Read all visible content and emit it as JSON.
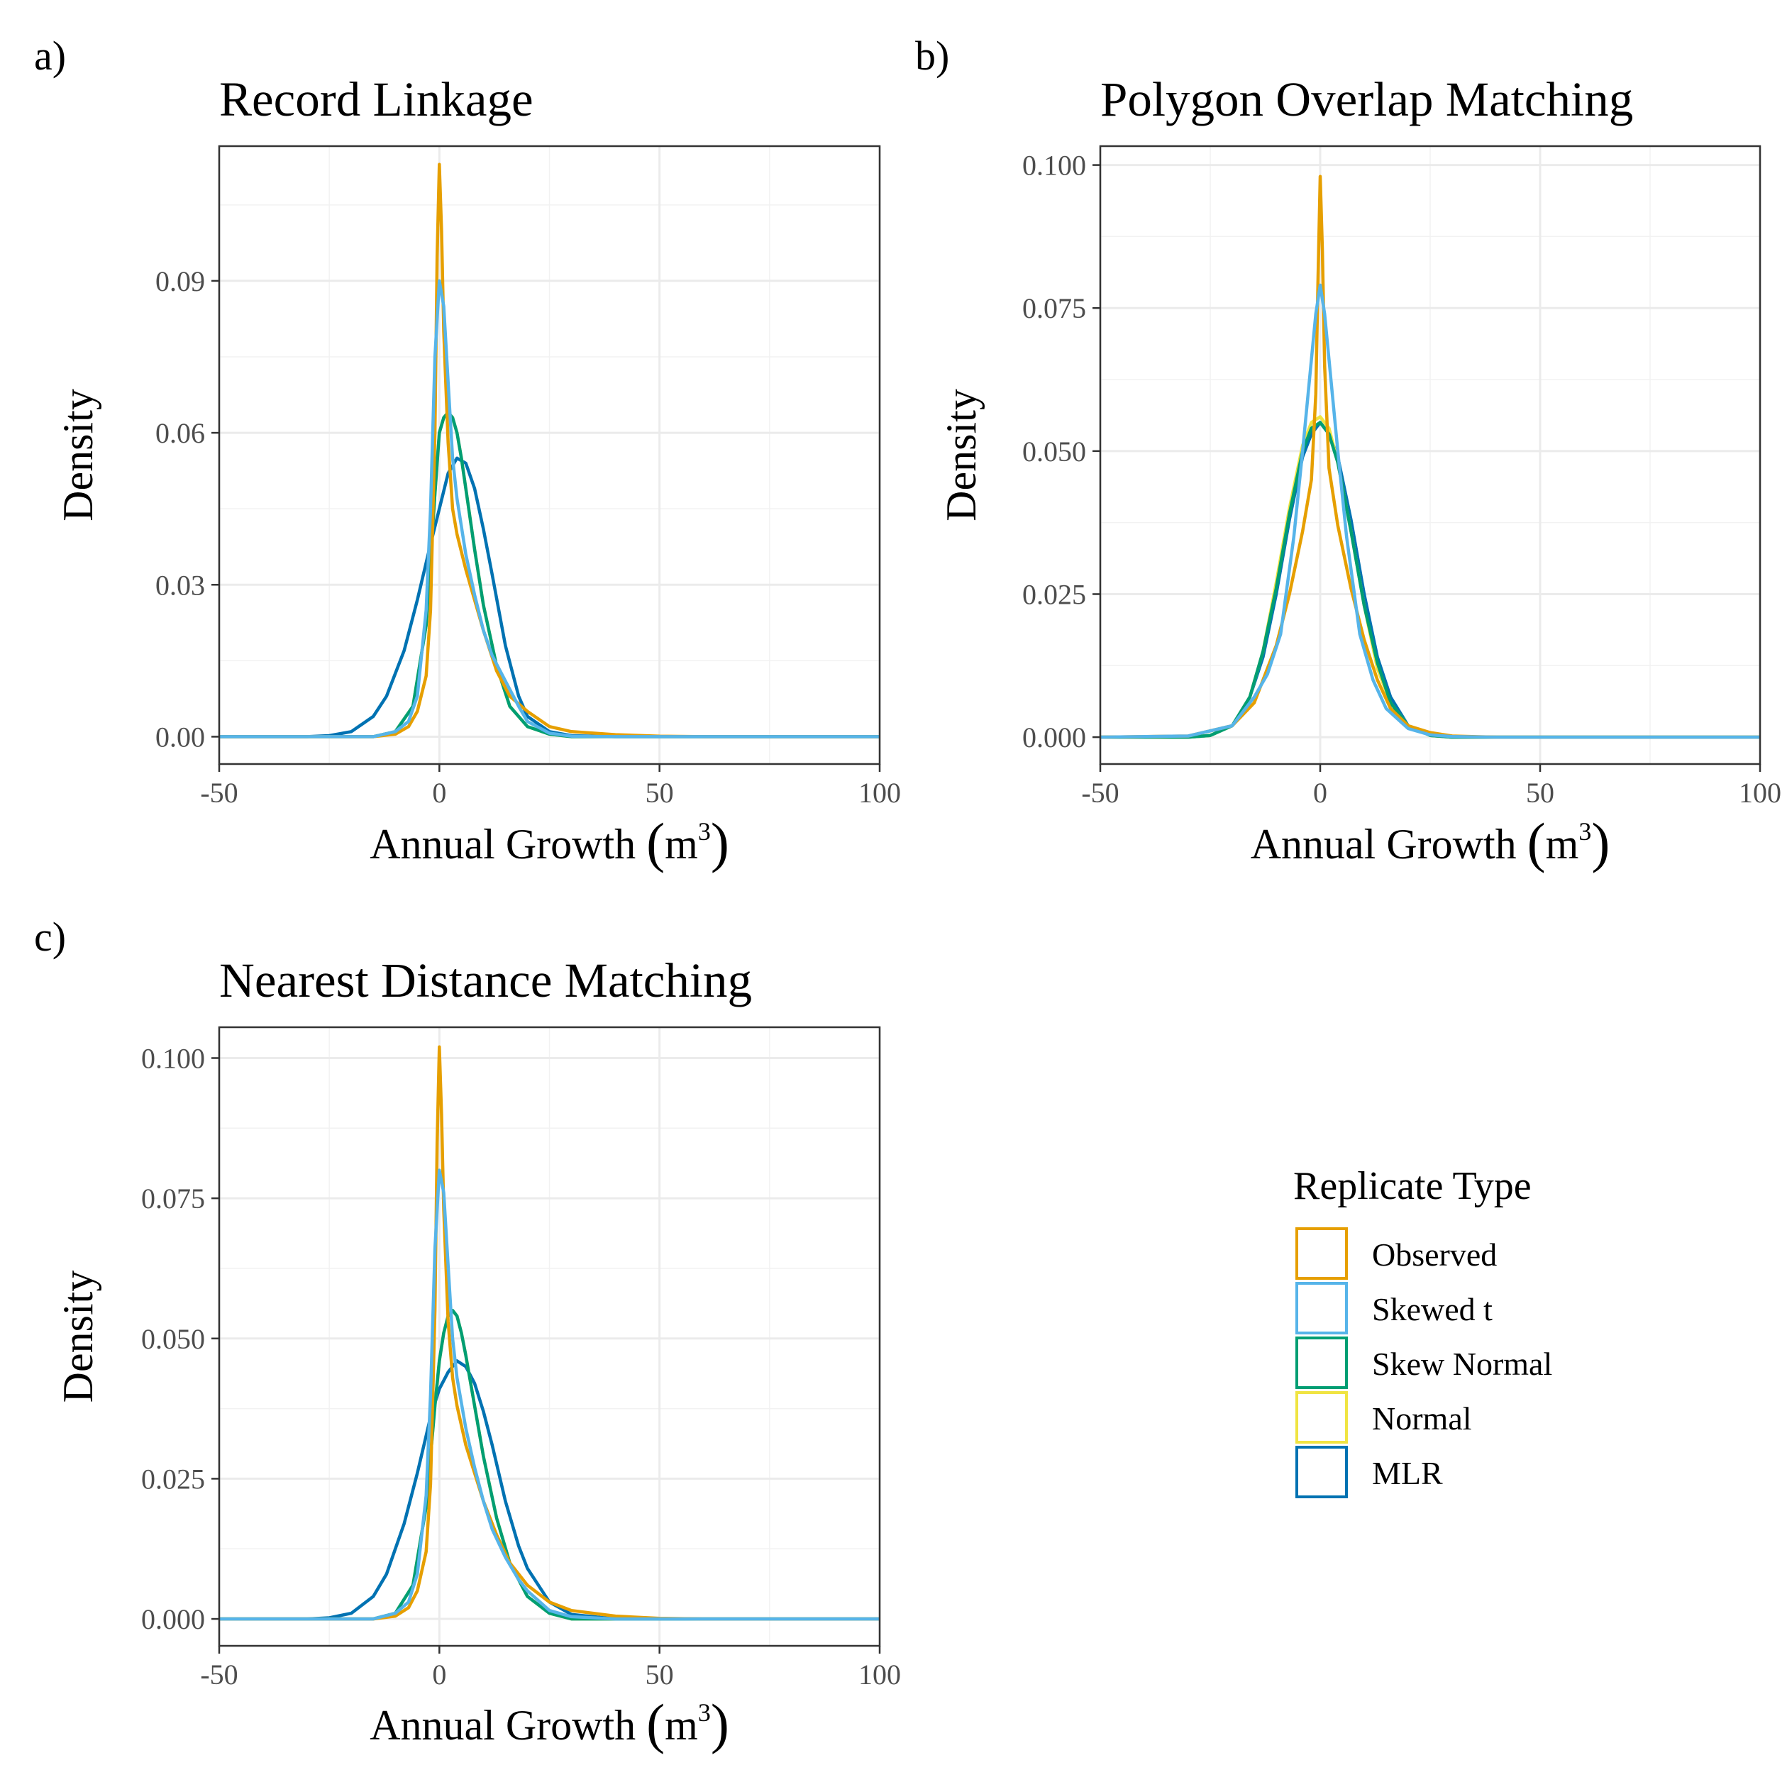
{
  "colors": {
    "Observed": "#E69F00",
    "Skewed t": "#56B4E9",
    "Skew Normal": "#009E73",
    "Normal": "#F0E442",
    "MLR": "#0072B2"
  },
  "legend": {
    "title": "Replicate Type",
    "items": [
      "Observed",
      "Skewed t",
      "Skew Normal",
      "Normal",
      "MLR"
    ]
  },
  "chart_data": [
    {
      "type": "line",
      "tag": "a)",
      "title": "Record Linkage",
      "xlabel": "Annual Growth",
      "xlabel_unit": "m",
      "xlabel_unit_exp": "3",
      "ylabel": "Density",
      "xlim": [
        -50,
        100
      ],
      "ylim": [
        -0.0054,
        0.1166
      ],
      "xticks": [
        -50,
        0,
        50,
        100
      ],
      "xtick_labels": [
        "-50",
        "0",
        "50",
        "100"
      ],
      "yticks": [
        0.0,
        0.03,
        0.06,
        0.09
      ],
      "ytick_labels": [
        "0.00",
        "0.03",
        "0.06",
        "0.09"
      ],
      "grid": true,
      "series": [
        {
          "name": "MLR",
          "x": [
            -50,
            -30,
            -25,
            -20,
            -15,
            -12,
            -8,
            -5,
            -2,
            0,
            2,
            4,
            6,
            8,
            10,
            12,
            15,
            18,
            20,
            25,
            30,
            40,
            100
          ],
          "y": [
            0,
            0,
            0.0002,
            0.001,
            0.004,
            0.008,
            0.017,
            0.027,
            0.038,
            0.045,
            0.052,
            0.055,
            0.054,
            0.049,
            0.041,
            0.032,
            0.018,
            0.008,
            0.004,
            0.001,
            0.0002,
            0,
            0
          ]
        },
        {
          "name": "Normal",
          "x": [
            -50,
            -15,
            -10,
            -6,
            -3,
            -1,
            0,
            1,
            2,
            3,
            4,
            5,
            6,
            8,
            10,
            13,
            16,
            20,
            25,
            30,
            40,
            100
          ],
          "y": [
            0,
            0,
            0.001,
            0.006,
            0.022,
            0.048,
            0.06,
            0.063,
            0.064,
            0.063,
            0.06,
            0.055,
            0.049,
            0.037,
            0.026,
            0.014,
            0.006,
            0.002,
            0.0005,
            0,
            0,
            0
          ]
        },
        {
          "name": "Skew Normal",
          "x": [
            -50,
            -15,
            -10,
            -6,
            -3,
            -1,
            0,
            1,
            2,
            3,
            4,
            5,
            6,
            8,
            10,
            13,
            16,
            20,
            25,
            30,
            40,
            100
          ],
          "y": [
            0,
            0,
            0.001,
            0.006,
            0.022,
            0.048,
            0.06,
            0.063,
            0.064,
            0.063,
            0.06,
            0.055,
            0.049,
            0.037,
            0.026,
            0.014,
            0.006,
            0.002,
            0.0005,
            0,
            0,
            0
          ]
        },
        {
          "name": "Observed",
          "x": [
            -50,
            -15,
            -10,
            -7,
            -5,
            -3,
            -2,
            -1,
            -0.5,
            0,
            0.5,
            1,
            2,
            3,
            4,
            6,
            8,
            10,
            13,
            16,
            20,
            25,
            30,
            40,
            50,
            60,
            100
          ],
          "y": [
            0,
            0,
            0.0005,
            0.002,
            0.005,
            0.012,
            0.025,
            0.06,
            0.095,
            0.113,
            0.1,
            0.08,
            0.058,
            0.045,
            0.04,
            0.033,
            0.027,
            0.021,
            0.013,
            0.008,
            0.005,
            0.002,
            0.001,
            0.0004,
            0.0001,
            0,
            0
          ]
        },
        {
          "name": "Skewed t",
          "x": [
            -50,
            -15,
            -10,
            -7,
            -5,
            -3,
            -2,
            -1,
            0,
            1,
            2,
            3,
            4,
            6,
            8,
            10,
            12,
            15,
            18,
            20,
            25,
            30,
            40,
            100
          ],
          "y": [
            0,
            0,
            0.001,
            0.003,
            0.008,
            0.025,
            0.045,
            0.075,
            0.09,
            0.085,
            0.07,
            0.055,
            0.047,
            0.036,
            0.028,
            0.021,
            0.016,
            0.011,
            0.006,
            0.003,
            0.0007,
            0.0001,
            0,
            0
          ]
        }
      ]
    },
    {
      "type": "line",
      "tag": "b)",
      "title": "Polygon Overlap Matching",
      "xlabel": "Annual Growth",
      "xlabel_unit": "m",
      "xlabel_unit_exp": "3",
      "ylabel": "Density",
      "xlim": [
        -50,
        100
      ],
      "ylim": [
        -0.0047,
        0.1033
      ],
      "xticks": [
        -50,
        0,
        50,
        100
      ],
      "xtick_labels": [
        "-50",
        "0",
        "50",
        "100"
      ],
      "yticks": [
        0.0,
        0.025,
        0.05,
        0.075,
        0.1
      ],
      "ytick_labels": [
        "0.000",
        "0.025",
        "0.050",
        "0.075",
        "0.100"
      ],
      "grid": true,
      "series": [
        {
          "name": "MLR",
          "x": [
            -50,
            -30,
            -25,
            -20,
            -16,
            -13,
            -10,
            -7,
            -4,
            -2,
            0,
            2,
            4,
            7,
            10,
            13,
            16,
            20,
            25,
            30,
            40,
            100
          ],
          "y": [
            0,
            0,
            0.0003,
            0.002,
            0.007,
            0.014,
            0.025,
            0.038,
            0.049,
            0.053,
            0.055,
            0.053,
            0.049,
            0.038,
            0.025,
            0.014,
            0.007,
            0.002,
            0.0003,
            0,
            0,
            0
          ]
        },
        {
          "name": "Normal",
          "x": [
            -50,
            -30,
            -25,
            -20,
            -16,
            -13,
            -10,
            -7,
            -4,
            -2,
            0,
            2,
            4,
            7,
            10,
            13,
            16,
            20,
            25,
            30,
            40,
            100
          ],
          "y": [
            0,
            0,
            0.0003,
            0.002,
            0.007,
            0.015,
            0.027,
            0.04,
            0.051,
            0.055,
            0.056,
            0.054,
            0.048,
            0.036,
            0.023,
            0.012,
            0.006,
            0.002,
            0.0003,
            0,
            0,
            0
          ]
        },
        {
          "name": "Skew Normal",
          "x": [
            -50,
            -30,
            -25,
            -20,
            -16,
            -13,
            -10,
            -7,
            -4,
            -2,
            0,
            2,
            4,
            7,
            10,
            13,
            16,
            20,
            25,
            30,
            40,
            100
          ],
          "y": [
            0,
            0,
            0.0003,
            0.002,
            0.007,
            0.015,
            0.026,
            0.039,
            0.05,
            0.054,
            0.055,
            0.053,
            0.048,
            0.036,
            0.023,
            0.013,
            0.006,
            0.002,
            0.0003,
            0,
            0,
            0
          ]
        },
        {
          "name": "Observed",
          "x": [
            -50,
            -30,
            -20,
            -15,
            -10,
            -7,
            -4,
            -2,
            -1,
            -0.5,
            0,
            0.5,
            1,
            2,
            4,
            7,
            10,
            13,
            16,
            20,
            25,
            30,
            40,
            100
          ],
          "y": [
            0,
            0.0002,
            0.002,
            0.006,
            0.016,
            0.025,
            0.036,
            0.045,
            0.06,
            0.08,
            0.098,
            0.085,
            0.065,
            0.047,
            0.037,
            0.026,
            0.017,
            0.01,
            0.005,
            0.002,
            0.0008,
            0.0002,
            0,
            0
          ]
        },
        {
          "name": "Skewed t",
          "x": [
            -50,
            -30,
            -20,
            -15,
            -12,
            -9,
            -6,
            -4,
            -2,
            -1,
            0,
            1,
            2,
            4,
            6,
            9,
            12,
            15,
            20,
            25,
            30,
            40,
            100
          ],
          "y": [
            0,
            0.0002,
            0.002,
            0.007,
            0.011,
            0.018,
            0.035,
            0.05,
            0.066,
            0.074,
            0.079,
            0.074,
            0.066,
            0.05,
            0.035,
            0.018,
            0.01,
            0.005,
            0.0015,
            0.0004,
            0.0001,
            0,
            0
          ]
        }
      ]
    },
    {
      "type": "line",
      "tag": "c)",
      "title": "Nearest Distance Matching",
      "xlabel": "Annual Growth",
      "xlabel_unit": "m",
      "xlabel_unit_exp": "3",
      "ylabel": "Density",
      "xlim": [
        -50,
        100
      ],
      "ylim": [
        -0.0048,
        0.1055
      ],
      "xticks": [
        -50,
        0,
        50,
        100
      ],
      "xtick_labels": [
        "-50",
        "0",
        "50",
        "100"
      ],
      "yticks": [
        0.0,
        0.025,
        0.05,
        0.075,
        0.1
      ],
      "ytick_labels": [
        "0.000",
        "0.025",
        "0.050",
        "0.075",
        "0.100"
      ],
      "grid": true,
      "series": [
        {
          "name": "MLR",
          "x": [
            -50,
            -30,
            -25,
            -20,
            -15,
            -12,
            -8,
            -5,
            -2,
            0,
            2,
            4,
            6,
            8,
            10,
            12,
            15,
            18,
            20,
            25,
            30,
            40,
            100
          ],
          "y": [
            0,
            0,
            0.0002,
            0.001,
            0.004,
            0.008,
            0.017,
            0.026,
            0.036,
            0.041,
            0.044,
            0.046,
            0.045,
            0.042,
            0.037,
            0.031,
            0.021,
            0.013,
            0.009,
            0.003,
            0.0008,
            0,
            0
          ]
        },
        {
          "name": "Normal",
          "x": [
            -50,
            -15,
            -10,
            -6,
            -3,
            -1,
            0,
            1,
            2,
            3,
            4,
            5,
            6,
            8,
            10,
            13,
            16,
            20,
            25,
            30,
            40,
            100
          ],
          "y": [
            0,
            0,
            0.001,
            0.006,
            0.02,
            0.038,
            0.046,
            0.051,
            0.054,
            0.055,
            0.054,
            0.051,
            0.047,
            0.038,
            0.029,
            0.018,
            0.01,
            0.004,
            0.001,
            0,
            0,
            0
          ]
        },
        {
          "name": "Skew Normal",
          "x": [
            -50,
            -15,
            -10,
            -6,
            -3,
            -1,
            0,
            1,
            2,
            3,
            4,
            5,
            6,
            8,
            10,
            13,
            16,
            20,
            25,
            30,
            40,
            100
          ],
          "y": [
            0,
            0,
            0.001,
            0.006,
            0.02,
            0.038,
            0.046,
            0.051,
            0.054,
            0.055,
            0.054,
            0.051,
            0.047,
            0.038,
            0.029,
            0.018,
            0.01,
            0.004,
            0.001,
            0,
            0,
            0
          ]
        },
        {
          "name": "Observed",
          "x": [
            -50,
            -15,
            -10,
            -7,
            -5,
            -3,
            -2,
            -1,
            -0.5,
            0,
            0.5,
            1,
            2,
            3,
            4,
            6,
            8,
            10,
            13,
            16,
            20,
            25,
            30,
            40,
            50,
            60,
            100
          ],
          "y": [
            0,
            0,
            0.0005,
            0.002,
            0.005,
            0.012,
            0.024,
            0.055,
            0.085,
            0.102,
            0.09,
            0.073,
            0.053,
            0.043,
            0.038,
            0.031,
            0.026,
            0.021,
            0.015,
            0.01,
            0.006,
            0.003,
            0.0015,
            0.0005,
            0.0001,
            0,
            0
          ]
        },
        {
          "name": "Skewed t",
          "x": [
            -50,
            -15,
            -10,
            -7,
            -5,
            -3,
            -2,
            -1,
            0,
            1,
            2,
            3,
            4,
            6,
            8,
            10,
            12,
            15,
            18,
            20,
            25,
            30,
            40,
            100
          ],
          "y": [
            0,
            0,
            0.001,
            0.003,
            0.008,
            0.022,
            0.04,
            0.066,
            0.08,
            0.076,
            0.063,
            0.05,
            0.043,
            0.034,
            0.027,
            0.021,
            0.016,
            0.011,
            0.007,
            0.005,
            0.0015,
            0.0004,
            0,
            0
          ]
        }
      ]
    }
  ]
}
